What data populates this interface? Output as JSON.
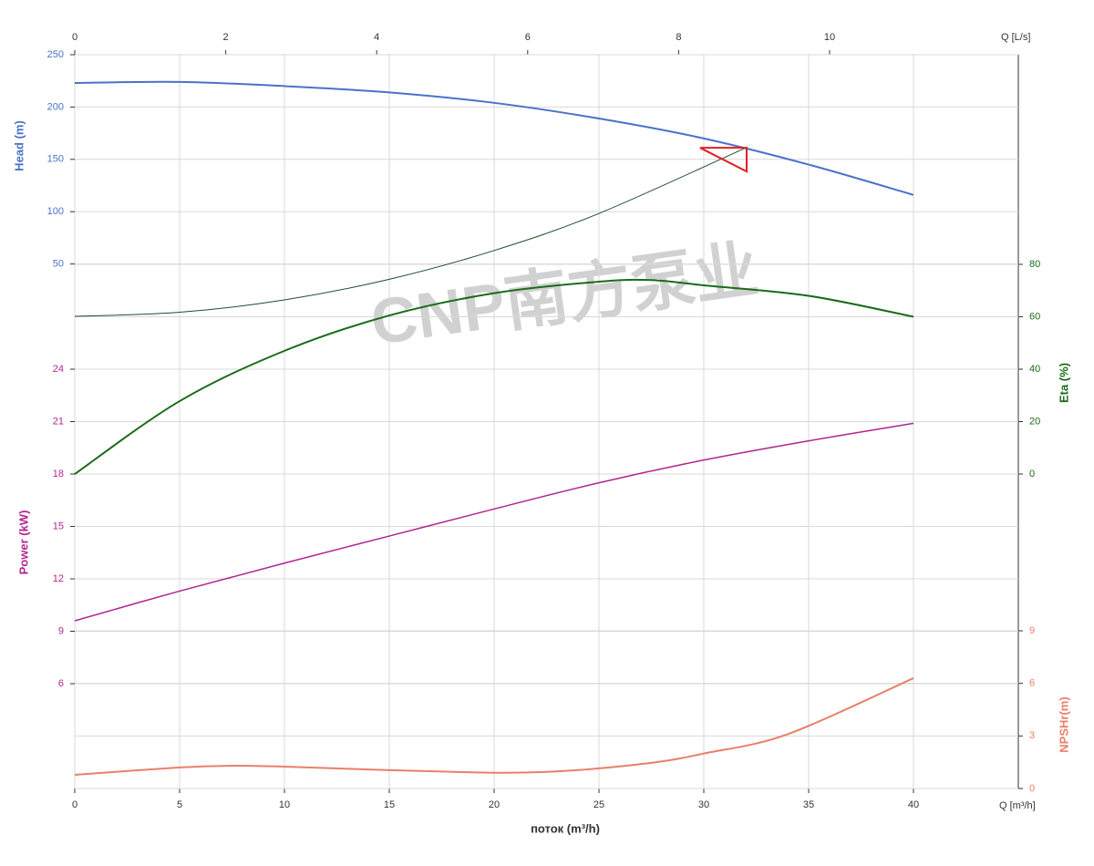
{
  "chart_data": {
    "type": "line",
    "x_label": "поток (m³/h)",
    "x_unit_label": "Q [m³/h]",
    "x2_unit_label": "Q [L/s]",
    "watermark": "CNP南方泵业",
    "xlim": [
      0,
      45
    ],
    "xticks": [
      0,
      5,
      10,
      15,
      20,
      25,
      30,
      35,
      40
    ],
    "x2lim": [
      0,
      12.5
    ],
    "x2ticks": [
      0,
      2,
      4,
      6,
      8,
      10
    ],
    "grid": true,
    "y_axes": [
      {
        "label": "Head (m)",
        "side": "left",
        "color": "#4a72c8",
        "ylim": [
          0,
          250
        ],
        "yticks": [
          50,
          100,
          150,
          200,
          250
        ]
      },
      {
        "label": "Power (kW)",
        "side": "left",
        "color": "#b0268f",
        "ylim": [
          0,
          27
        ],
        "yticks": [
          6,
          9,
          12,
          15,
          18,
          21,
          24
        ]
      },
      {
        "label": "Eta (%)",
        "side": "right",
        "color": "#1a6b1a",
        "ylim": [
          0,
          80
        ],
        "yticks": [
          0,
          20,
          40,
          60,
          80
        ]
      },
      {
        "label": "NPSHr(m)",
        "side": "right",
        "color": "#e8806a",
        "ylim": [
          0,
          9
        ],
        "yticks": [
          0,
          3,
          6,
          9
        ]
      }
    ],
    "series": [
      {
        "axis": 0,
        "color": "#4a72c8",
        "width": 2,
        "x": [
          0,
          5,
          10,
          15,
          20,
          25,
          30,
          35,
          40
        ],
        "values": [
          223,
          224,
          220,
          214,
          204,
          189,
          170,
          145,
          116
        ]
      },
      {
        "axis": 0,
        "color": "#1f4d2b",
        "width": 1,
        "x": [
          0,
          5,
          10,
          15,
          20,
          25,
          32
        ],
        "values": [
          0,
          3.9,
          15.7,
          35.4,
          62.9,
          98.3,
          161
        ]
      },
      {
        "axis": 2,
        "color": "#1a6b1a",
        "width": 2,
        "x": [
          0,
          5,
          10,
          15,
          20,
          25,
          27.5,
          30,
          35,
          40
        ],
        "values": [
          0,
          27.8,
          47,
          60.5,
          69,
          73.4,
          74,
          72,
          68,
          60
        ]
      },
      {
        "axis": 1,
        "color": "#b0268f",
        "width": 1.5,
        "x": [
          0,
          5,
          10,
          15,
          20,
          25,
          30,
          35,
          40
        ],
        "values": [
          9.6,
          11.3,
          12.9,
          14.45,
          16.0,
          17.5,
          18.8,
          19.9,
          20.9
        ]
      },
      {
        "axis": 3,
        "color": "#e8806a",
        "width": 2,
        "x": [
          0,
          5,
          7.5,
          10,
          15,
          20,
          22.5,
          25,
          28,
          30,
          34,
          40
        ],
        "values": [
          0.78,
          1.2,
          1.3,
          1.25,
          1.05,
          0.9,
          0.95,
          1.15,
          1.55,
          2.0,
          3.1,
          6.3
        ]
      }
    ],
    "operating_point": {
      "x": 32,
      "y": 161,
      "axis": 0,
      "color": "#e02020"
    }
  }
}
